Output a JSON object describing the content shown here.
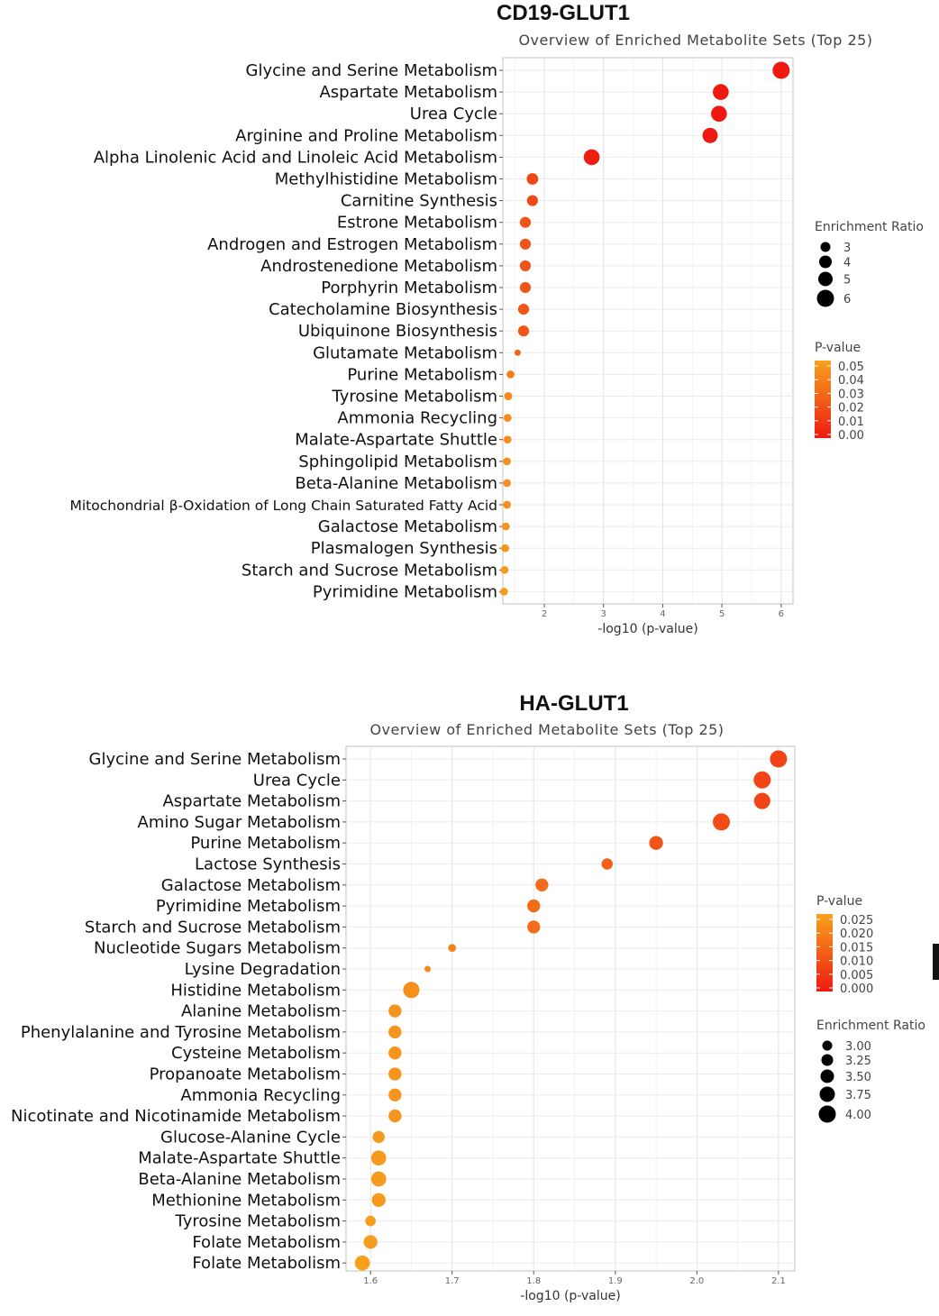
{
  "chart_data": [
    {
      "type": "scatter",
      "title": "CD19-GLUT1",
      "subtitle": "Overview of Enriched Metabolite Sets (Top 25)",
      "xlabel": "-log10 (p-value)",
      "xlim": [
        1.3,
        6.2
      ],
      "xticks": [
        2,
        3,
        4,
        5,
        6
      ],
      "grid": true,
      "size_legend": {
        "title": "Enrichment Ratio",
        "values": [
          "3",
          "4",
          "5",
          "6"
        ]
      },
      "color_legend": {
        "title": "P-value",
        "values": [
          "0.05",
          "0.04",
          "0.03",
          "0.02",
          "0.01",
          "0.00"
        ],
        "colors": [
          "#f7a21e",
          "#ee1a12"
        ]
      },
      "points": [
        {
          "name": "Glycine and Serine Metabolism",
          "x": 6.0,
          "ratio": 6.0,
          "p": 1e-06
        },
        {
          "name": "Aspartate Metabolism",
          "x": 4.98,
          "ratio": 5.6,
          "p": 1e-05
        },
        {
          "name": "Urea Cycle",
          "x": 4.95,
          "ratio": 5.6,
          "p": 1e-05
        },
        {
          "name": "Arginine and Proline Metabolism",
          "x": 4.8,
          "ratio": 5.4,
          "p": 2e-05
        },
        {
          "name": "Alpha Linolenic Acid and Linoleic Acid Metabolism",
          "x": 2.8,
          "ratio": 5.6,
          "p": 0.0016
        },
        {
          "name": "Methylhistidine Metabolism",
          "x": 1.8,
          "ratio": 4.2,
          "p": 0.016
        },
        {
          "name": "Carnitine Synthesis",
          "x": 1.8,
          "ratio": 4.0,
          "p": 0.016
        },
        {
          "name": "Estrone Metabolism",
          "x": 1.68,
          "ratio": 4.0,
          "p": 0.021
        },
        {
          "name": "Androgen and Estrogen Metabolism",
          "x": 1.68,
          "ratio": 4.0,
          "p": 0.021
        },
        {
          "name": "Androstenedione Metabolism",
          "x": 1.68,
          "ratio": 4.0,
          "p": 0.021
        },
        {
          "name": "Porphyrin Metabolism",
          "x": 1.68,
          "ratio": 4.0,
          "p": 0.021
        },
        {
          "name": "Catecholamine Biosynthesis",
          "x": 1.65,
          "ratio": 4.0,
          "p": 0.022
        },
        {
          "name": "Ubiquinone Biosynthesis",
          "x": 1.65,
          "ratio": 4.0,
          "p": 0.022
        },
        {
          "name": "Glutamate Metabolism",
          "x": 1.55,
          "ratio": 2.5,
          "p": 0.028
        },
        {
          "name": "Purine Metabolism",
          "x": 1.43,
          "ratio": 3.0,
          "p": 0.037
        },
        {
          "name": "Tyrosine Metabolism",
          "x": 1.39,
          "ratio": 3.1,
          "p": 0.041
        },
        {
          "name": "Ammonia Recycling",
          "x": 1.38,
          "ratio": 3.0,
          "p": 0.042
        },
        {
          "name": "Malate-Aspartate Shuttle",
          "x": 1.38,
          "ratio": 3.0,
          "p": 0.042
        },
        {
          "name": "Sphingolipid Metabolism",
          "x": 1.37,
          "ratio": 3.0,
          "p": 0.043
        },
        {
          "name": "Beta-Alanine Metabolism",
          "x": 1.37,
          "ratio": 3.0,
          "p": 0.043
        },
        {
          "name": "Mitochondrial β-Oxidation of Long Chain Saturated Fatty Acid",
          "x": 1.37,
          "ratio": 3.0,
          "p": 0.043
        },
        {
          "name": "Galactose Metabolism",
          "x": 1.35,
          "ratio": 3.0,
          "p": 0.045
        },
        {
          "name": "Plasmalogen Synthesis",
          "x": 1.34,
          "ratio": 3.0,
          "p": 0.046
        },
        {
          "name": "Starch and Sucrose Metabolism",
          "x": 1.33,
          "ratio": 3.0,
          "p": 0.047
        },
        {
          "name": "Pyrimidine Metabolism",
          "x": 1.32,
          "ratio": 3.0,
          "p": 0.048
        }
      ]
    },
    {
      "type": "scatter",
      "title": "HA-GLUT1",
      "subtitle": "Overview of Enriched Metabolite Sets (Top 25)",
      "xlabel": "-log10 (p-value)",
      "xlim": [
        1.57,
        2.12
      ],
      "xticks": [
        1.6,
        1.7,
        1.8,
        1.9,
        2.0,
        2.1
      ],
      "grid": true,
      "color_legend": {
        "title": "P-value",
        "values": [
          "0.025",
          "0.020",
          "0.015",
          "0.010",
          "0.005",
          "0.000"
        ],
        "colors": [
          "#f7a21e",
          "#ee1a12"
        ]
      },
      "size_legend": {
        "title": "Enrichment Ratio",
        "values": [
          "3.00",
          "3.25",
          "3.50",
          "3.75",
          "4.00"
        ]
      },
      "points": [
        {
          "name": "Glycine and Serine Metabolism",
          "x": 2.1,
          "ratio": 4.0,
          "p": 0.0079
        },
        {
          "name": "Urea Cycle",
          "x": 2.08,
          "ratio": 4.0,
          "p": 0.0083
        },
        {
          "name": "Aspartate Metabolism",
          "x": 2.08,
          "ratio": 3.9,
          "p": 0.0083
        },
        {
          "name": "Amino Sugar Metabolism",
          "x": 2.03,
          "ratio": 4.0,
          "p": 0.0093
        },
        {
          "name": "Purine Metabolism",
          "x": 1.95,
          "ratio": 3.6,
          "p": 0.011
        },
        {
          "name": "Lactose Synthesis",
          "x": 1.89,
          "ratio": 3.3,
          "p": 0.013
        },
        {
          "name": "Galactose Metabolism",
          "x": 1.81,
          "ratio": 3.5,
          "p": 0.0155
        },
        {
          "name": "Pyrimidine Metabolism",
          "x": 1.8,
          "ratio": 3.5,
          "p": 0.0158
        },
        {
          "name": "Starch and Sucrose Metabolism",
          "x": 1.8,
          "ratio": 3.5,
          "p": 0.0158
        },
        {
          "name": "Nucleotide Sugars Metabolism",
          "x": 1.7,
          "ratio": 2.9,
          "p": 0.02
        },
        {
          "name": "Lysine Degradation",
          "x": 1.67,
          "ratio": 2.7,
          "p": 0.0214
        },
        {
          "name": "Histidine Metabolism",
          "x": 1.65,
          "ratio": 3.9,
          "p": 0.0224
        },
        {
          "name": "Alanine Metabolism",
          "x": 1.63,
          "ratio": 3.5,
          "p": 0.0234
        },
        {
          "name": "Phenylalanine and Tyrosine Metabolism",
          "x": 1.63,
          "ratio": 3.5,
          "p": 0.0234
        },
        {
          "name": "Cysteine Metabolism",
          "x": 1.63,
          "ratio": 3.5,
          "p": 0.0234
        },
        {
          "name": "Propanoate Metabolism",
          "x": 1.63,
          "ratio": 3.5,
          "p": 0.0234
        },
        {
          "name": "Ammonia Recycling",
          "x": 1.63,
          "ratio": 3.5,
          "p": 0.0234
        },
        {
          "name": "Nicotinate and Nicotinamide Metabolism",
          "x": 1.63,
          "ratio": 3.5,
          "p": 0.0234
        },
        {
          "name": "Glucose-Alanine Cycle",
          "x": 1.61,
          "ratio": 3.4,
          "p": 0.0245
        },
        {
          "name": "Malate-Aspartate Shuttle",
          "x": 1.61,
          "ratio": 3.75,
          "p": 0.0245
        },
        {
          "name": "Beta-Alanine Metabolism",
          "x": 1.61,
          "ratio": 3.75,
          "p": 0.0245
        },
        {
          "name": "Methionine Metabolism",
          "x": 1.61,
          "ratio": 3.6,
          "p": 0.0245
        },
        {
          "name": "Tyrosine Metabolism",
          "x": 1.6,
          "ratio": 3.2,
          "p": 0.025
        },
        {
          "name": "Folate Metabolism",
          "x": 1.6,
          "ratio": 3.6,
          "p": 0.025
        },
        {
          "name": "Folate Metabolism",
          "x": 1.59,
          "ratio": 3.75,
          "p": 0.0257
        }
      ]
    }
  ]
}
